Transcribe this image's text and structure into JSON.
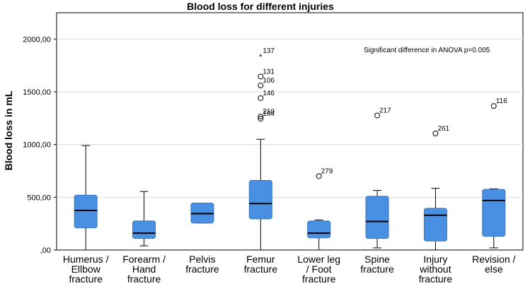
{
  "chart_data": {
    "type": "box",
    "title": "Blood loss for different injuries",
    "ylabel": "Blood loss in mL",
    "xlabel": "",
    "ylim": [
      0,
      2250
    ],
    "yticks": [
      0,
      500,
      1000,
      1500,
      2000
    ],
    "ytick_labels": [
      ",00",
      "500,00",
      "1000,00",
      "1500,00",
      "2000,00"
    ],
    "annotation": "Significant difference in ANOVA p=0.005",
    "box_color": "#4a90e2",
    "categories": [
      {
        "label": [
          "Humerus /",
          "Ellbow",
          "fracture"
        ],
        "whisker_low": 0,
        "q1": 210,
        "median": 375,
        "q3": 520,
        "whisker_high": 990,
        "outliers": []
      },
      {
        "label": [
          "Forearm /",
          "Hand",
          "fracture"
        ],
        "whisker_low": 40,
        "q1": 110,
        "median": 160,
        "q3": 275,
        "whisker_high": 555,
        "outliers": []
      },
      {
        "label": [
          "Pelvis",
          "fracture"
        ],
        "whisker_low": 255,
        "q1": 255,
        "median": 345,
        "q3": 445,
        "whisker_high": 445,
        "outliers": []
      },
      {
        "label": [
          "Femur",
          "fracture"
        ],
        "whisker_low": 0,
        "q1": 295,
        "median": 440,
        "q3": 660,
        "whisker_high": 1050,
        "outliers": [
          {
            "value": 1840,
            "label": "137",
            "marker": "star"
          },
          {
            "value": 1645,
            "label": "131",
            "marker": "circle"
          },
          {
            "value": 1560,
            "label": "106",
            "marker": "circle"
          },
          {
            "value": 1440,
            "label": "146",
            "marker": "circle"
          },
          {
            "value": 1265,
            "label": "210",
            "marker": "circle"
          },
          {
            "value": 1245,
            "label": "104",
            "marker": "circle"
          }
        ]
      },
      {
        "label": [
          "Lower leg",
          "/ Foot",
          "fracture"
        ],
        "whisker_low": 0,
        "q1": 115,
        "median": 160,
        "q3": 275,
        "whisker_high": 285,
        "outliers": [
          {
            "value": 700,
            "label": "279",
            "marker": "circle"
          }
        ]
      },
      {
        "label": [
          "Spine",
          "fracture"
        ],
        "whisker_low": 20,
        "q1": 110,
        "median": 270,
        "q3": 510,
        "whisker_high": 565,
        "outliers": [
          {
            "value": 1275,
            "label": "217",
            "marker": "circle"
          }
        ]
      },
      {
        "label": [
          "Injury",
          "without",
          "fracture"
        ],
        "whisker_low": 0,
        "q1": 85,
        "median": 330,
        "q3": 395,
        "whisker_high": 585,
        "outliers": [
          {
            "value": 1105,
            "label": "261",
            "marker": "circle"
          }
        ]
      },
      {
        "label": [
          "Revision /",
          "else"
        ],
        "whisker_low": 20,
        "q1": 130,
        "median": 470,
        "q3": 575,
        "whisker_high": 580,
        "outliers": [
          {
            "value": 1365,
            "label": "116",
            "marker": "circle"
          }
        ]
      }
    ]
  }
}
